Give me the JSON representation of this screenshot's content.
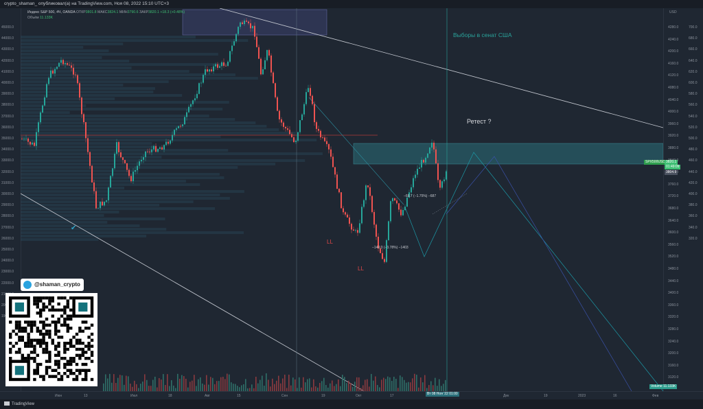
{
  "header": {
    "title_line": "crypto_shaman_ опубликовал(а) на TradingView.com, Ноя 08, 2022 15:10 UTC+3"
  },
  "legend": {
    "symbol": "Индекс S&P 500, 4Ч, OANDA",
    "open_label": "ОТКР",
    "open": "3801.8",
    "high_label": "МАКС",
    "high": "3824.1",
    "low_label": "МИН",
    "low": "3790.6",
    "close_label": "ЗАКР",
    "close": "3820.1",
    "change": "+18.3 (+0.48%)",
    "volume_label": "Объём",
    "volume": "11.133K"
  },
  "annotations": {
    "elections": "Выборы в сенат США",
    "retest": "Ретест ?",
    "ll_1": "LL",
    "ll_2": "LL",
    "measure_1": "−140.3 (−3.78%) −1403",
    "measure_2": "−68.7 (−1.75%) −687",
    "checkmark": "✔"
  },
  "left_axis": {
    "ticks": [
      "45000.0",
      "44000.0",
      "43000.0",
      "42000.0",
      "41000.0",
      "40000.0",
      "39000.0",
      "38000.0",
      "37000.0",
      "36000.0",
      "35000.0",
      "34000.0",
      "33000.0",
      "32000.0",
      "31000.0",
      "30000.0",
      "29000.0",
      "28000.0",
      "27000.0",
      "26000.0",
      "25000.0",
      "24000.0",
      "23000.0",
      "22000.0",
      "21000.0",
      "20000.0",
      "19000.0"
    ]
  },
  "right_axis": {
    "currency": "USD",
    "ticks": [
      "4280.0",
      "4240.0",
      "4200.0",
      "4160.0",
      "4120.0",
      "4080.0",
      "4040.0",
      "4000.0",
      "3960.0",
      "3920.0",
      "3880.0",
      "3840.0",
      "3800.0",
      "3760.0",
      "3720.0",
      "3680.0",
      "3640.0",
      "3600.0",
      "3560.0",
      "3520.0",
      "3480.0",
      "3440.0",
      "3400.0",
      "3360.0",
      "3320.0",
      "3280.0",
      "3240.0",
      "3200.0",
      "3160.0",
      "3120.0"
    ],
    "far_ticks": [
      "700.0",
      "680.0",
      "660.0",
      "640.0",
      "620.0",
      "600.0",
      "580.0",
      "560.0",
      "540.0",
      "520.0",
      "500.0",
      "480.0",
      "460.0",
      "440.0",
      "420.0",
      "400.0",
      "380.0",
      "360.0",
      "340.0",
      "320.0"
    ],
    "price_badge_symbol": "SPX500USD",
    "price_badge_value": "3820.1",
    "price_badge_time": "01:49:09",
    "price_badge_2": "3804.9",
    "volume_badge": "Volume 11.133K"
  },
  "x_axis": {
    "ticks": [
      "Июн",
      "13",
      "Июл",
      "18",
      "Авг",
      "15",
      "Сен",
      "19",
      "Окт",
      "17",
      "Дек",
      "19",
      "2023",
      "16",
      "Фев"
    ],
    "cursor_label": "Вт 08 Ноя '22 01:00"
  },
  "footer": {
    "brand": "TradingView"
  },
  "telegram": {
    "handle": "@shaman_crypto"
  },
  "colors": {
    "background": "#1f2732",
    "up_candle": "#26a69a",
    "down_candle": "#ef5350",
    "zone": "#2a6f7a",
    "resistance": "#b03a3a",
    "trendline": "#c8ccd4",
    "projection": "#1c9aa8",
    "accent_green": "#3fbf74"
  }
}
